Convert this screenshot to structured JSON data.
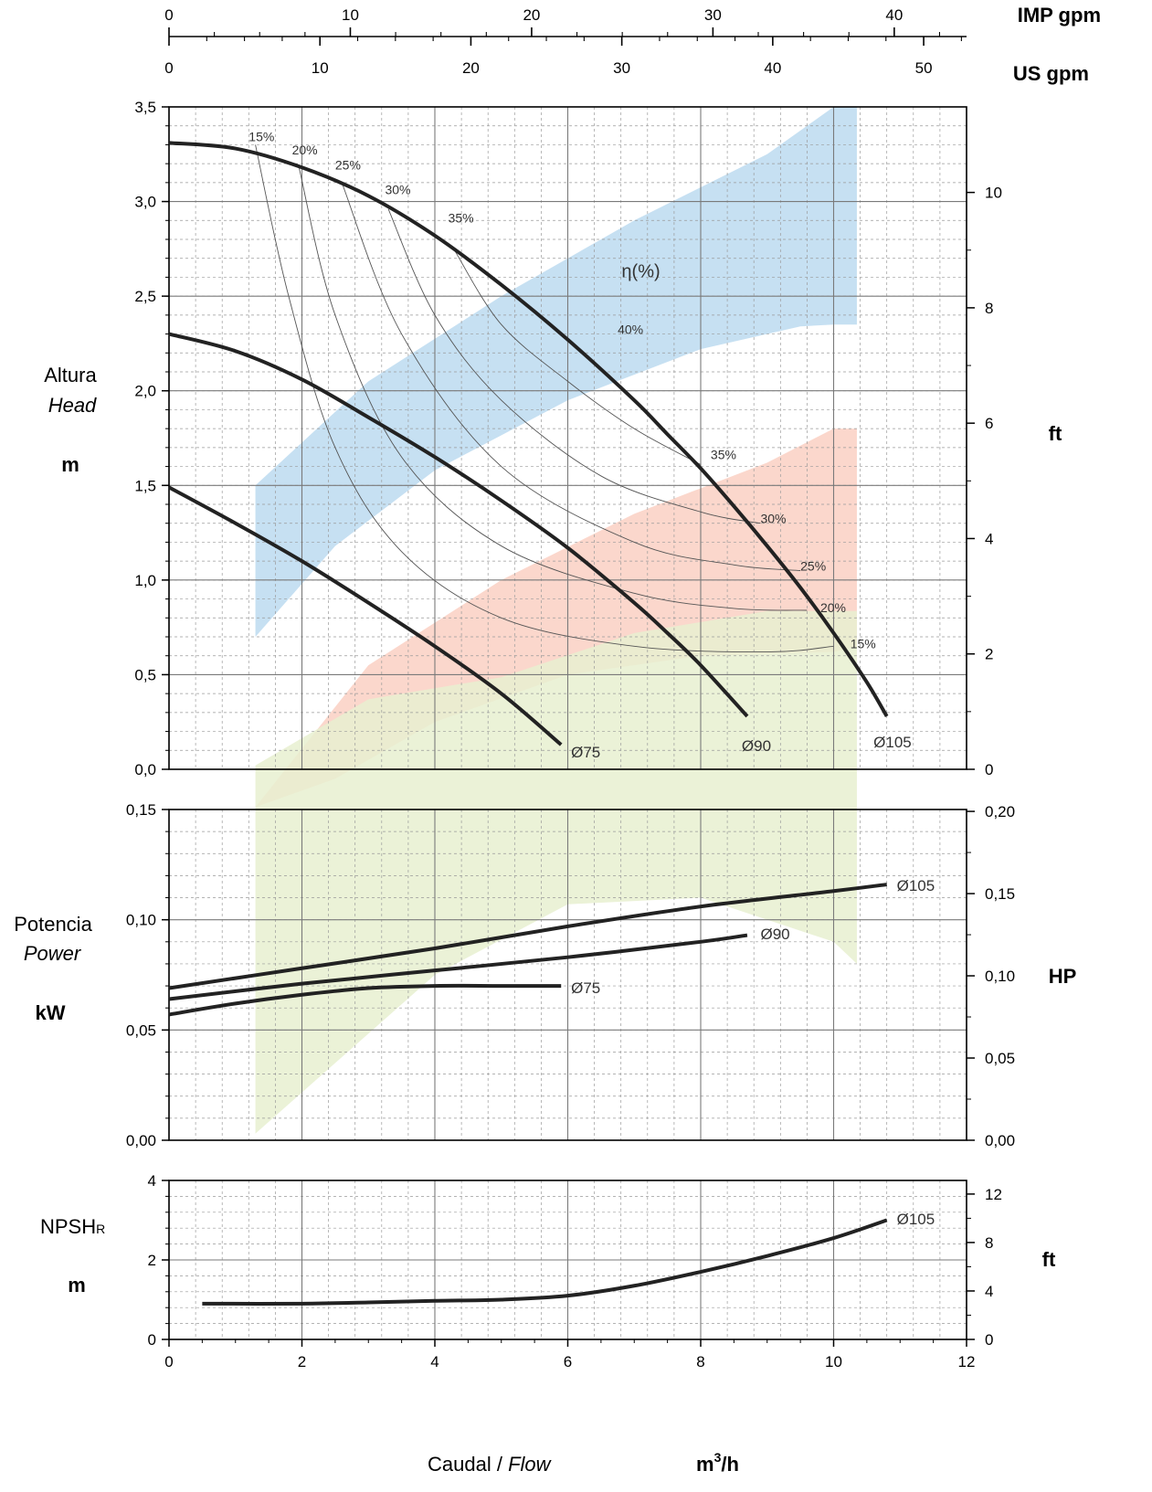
{
  "chart_data": [
    {
      "type": "line",
      "panel": "head",
      "ylabel_lines": [
        "Altura",
        "Head",
        "m"
      ],
      "y_right_unit": "ft",
      "top_axes": {
        "imp_unit": "IMP gpm",
        "us_unit": "US gpm",
        "imp_ticks": [
          "0",
          "10",
          "20",
          "30",
          "40"
        ],
        "us_ticks": [
          "0",
          "10",
          "20",
          "30",
          "40",
          "50"
        ]
      },
      "xlim": [
        0,
        12
      ],
      "ylim": [
        0,
        3.5
      ],
      "y_ticks": [
        "0,0",
        "0,5",
        "1,0",
        "1,5",
        "2,0",
        "2,5",
        "3,0",
        "3,5"
      ],
      "y_right_ticks": [
        "0",
        "2",
        "4",
        "6",
        "8",
        "10"
      ],
      "series": [
        {
          "name": "Ø105",
          "x": [
            0,
            1,
            2,
            3,
            4,
            5,
            6,
            7,
            7.5,
            8,
            8.5,
            9,
            9.5,
            10,
            10.5,
            10.8
          ],
          "y": [
            3.31,
            3.28,
            3.18,
            3.03,
            2.82,
            2.56,
            2.27,
            1.95,
            1.77,
            1.59,
            1.39,
            1.18,
            0.96,
            0.72,
            0.46,
            0.28
          ]
        },
        {
          "name": "Ø90",
          "x": [
            0,
            1,
            2,
            3,
            4,
            5,
            6,
            7,
            7.5,
            8,
            8.7
          ],
          "y": [
            2.3,
            2.21,
            2.06,
            1.86,
            1.65,
            1.42,
            1.17,
            0.88,
            0.72,
            0.55,
            0.28
          ]
        },
        {
          "name": "Ø75",
          "x": [
            0,
            1,
            2,
            3,
            4,
            5,
            5.9
          ],
          "y": [
            1.49,
            1.3,
            1.1,
            0.88,
            0.65,
            0.4,
            0.13
          ]
        }
      ],
      "efficiency_label": "η(%)",
      "efficiency_isolines": [
        {
          "label": "15%",
          "x": [
            1.3,
            1.8,
            2.5,
            3.5,
            5,
            7,
            9,
            10
          ],
          "y": [
            3.3,
            2.5,
            1.7,
            1.15,
            0.8,
            0.65,
            0.62,
            0.65
          ]
        },
        {
          "label": "20%",
          "x": [
            1.95,
            2.5,
            3.5,
            5,
            7,
            8.5,
            9.6
          ],
          "y": [
            3.19,
            2.4,
            1.65,
            1.18,
            0.93,
            0.85,
            0.84
          ]
        },
        {
          "label": "25%",
          "x": [
            2.6,
            3.5,
            5,
            7,
            8.5,
            9.5
          ],
          "y": [
            3.1,
            2.3,
            1.6,
            1.2,
            1.08,
            1.05
          ]
        },
        {
          "label": "30%",
          "x": [
            3.3,
            4,
            5,
            6.5,
            8,
            8.9
          ],
          "y": [
            2.96,
            2.4,
            1.95,
            1.55,
            1.36,
            1.3
          ]
        },
        {
          "label": "35%",
          "x": [
            4.3,
            5,
            6,
            7,
            8
          ],
          "y": [
            2.74,
            2.35,
            2.05,
            1.8,
            1.61
          ]
        }
      ],
      "efficiency_labels_left": [
        {
          "label": "15%",
          "x": 1.2,
          "y": 3.32
        },
        {
          "label": "20%",
          "x": 1.85,
          "y": 3.25
        },
        {
          "label": "25%",
          "x": 2.5,
          "y": 3.17
        },
        {
          "label": "30%",
          "x": 3.25,
          "y": 3.04
        },
        {
          "label": "35%",
          "x": 4.2,
          "y": 2.89
        },
        {
          "label": "40%",
          "x": 6.75,
          "y": 2.3
        }
      ],
      "efficiency_labels_right": [
        {
          "label": "35%",
          "x": 8.15,
          "y": 1.64
        },
        {
          "label": "30%",
          "x": 8.9,
          "y": 1.3
        },
        {
          "label": "25%",
          "x": 9.5,
          "y": 1.05
        },
        {
          "label": "20%",
          "x": 9.8,
          "y": 0.83
        },
        {
          "label": "15%",
          "x": 10.25,
          "y": 0.64
        }
      ],
      "bands": {
        "blue": {
          "color": "#bcdaf0",
          "x": [
            1.3,
            3,
            5,
            7,
            9,
            10,
            10.35,
            10.35,
            10,
            9.5,
            8,
            6,
            4,
            2.5,
            1.3
          ],
          "y": [
            1.5,
            2.05,
            2.5,
            2.9,
            3.25,
            3.5,
            3.5,
            2.35,
            2.35,
            2.34,
            2.22,
            1.95,
            1.58,
            1.18,
            0.7
          ]
        },
        "red": {
          "color": "#fad0c3",
          "x": [
            1.3,
            3,
            5,
            7,
            9,
            10,
            10.35,
            10.35,
            10,
            8,
            6,
            4,
            2.5,
            1.3
          ],
          "y": [
            -0.2,
            0.55,
            1.0,
            1.35,
            1.62,
            1.8,
            1.8,
            0.65,
            0.62,
            0.6,
            0.5,
            0.25,
            -0.05,
            -0.2
          ]
        }
      }
    },
    {
      "type": "line",
      "panel": "power",
      "ylabel_lines": [
        "Potencia",
        "Power",
        "kW"
      ],
      "y_right_unit": "HP",
      "xlim": [
        0,
        12
      ],
      "ylim": [
        0,
        0.15
      ],
      "y_ticks": [
        "0,00",
        "0,05",
        "0,10",
        "0,15"
      ],
      "y_right_ticks": [
        "0,00",
        "0,05",
        "0,10",
        "0,15",
        "0,20"
      ],
      "series": [
        {
          "name": "Ø105",
          "x": [
            0,
            2,
            4,
            6,
            8,
            10,
            10.8
          ],
          "y": [
            0.069,
            0.078,
            0.087,
            0.097,
            0.106,
            0.113,
            0.116
          ]
        },
        {
          "name": "Ø90",
          "x": [
            0,
            2,
            4,
            6,
            8,
            8.7
          ],
          "y": [
            0.064,
            0.071,
            0.077,
            0.083,
            0.09,
            0.093
          ]
        },
        {
          "name": "Ø75",
          "x": [
            0,
            1,
            2,
            3,
            4,
            5,
            5.9
          ],
          "y": [
            0.057,
            0.062,
            0.066,
            0.069,
            0.07,
            0.07,
            0.07
          ]
        }
      ],
      "band": {
        "color": "#e8f0d0",
        "x": [
          1.3,
          3,
          5,
          7,
          9,
          10,
          10.35,
          10.35,
          10,
          8,
          6,
          4,
          2.5,
          1.3
        ],
        "y": [
          0.17,
          0.2,
          0.21,
          0.23,
          0.24,
          0.24,
          0.24,
          0.08,
          0.09,
          0.11,
          0.107,
          0.075,
          0.035,
          0.003
        ]
      }
    },
    {
      "type": "line",
      "panel": "npsh",
      "ylabel_main": "NPSH",
      "ylabel_sub": "R",
      "ylabel_unit": "m",
      "y_right_unit": "ft",
      "xlim": [
        0,
        12
      ],
      "ylim": [
        0,
        4
      ],
      "y_ticks": [
        "0",
        "2",
        "4"
      ],
      "y_right_ticks": [
        "0",
        "4",
        "8",
        "12"
      ],
      "x_ticks": [
        "0",
        "2",
        "4",
        "6",
        "8",
        "10",
        "12"
      ],
      "xlabel": "Caudal",
      "xlabel_separator": " / ",
      "xlabel_italic": "Flow",
      "x_unit": "m",
      "x_unit_sup": "3",
      "x_unit_suffix": "/h",
      "series": [
        {
          "name": "Ø105",
          "x": [
            0.5,
            2,
            3,
            4,
            5,
            6,
            7,
            8,
            9,
            10,
            10.8
          ],
          "y": [
            0.9,
            0.9,
            0.93,
            0.97,
            1.0,
            1.1,
            1.35,
            1.7,
            2.1,
            2.55,
            3.0
          ]
        }
      ]
    }
  ]
}
